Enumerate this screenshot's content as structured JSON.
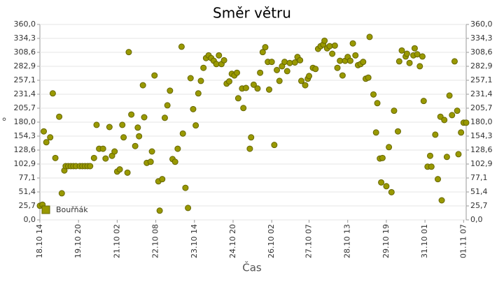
{
  "chart_data": {
    "type": "scatter",
    "title": "Směr větru",
    "x_label": "Čas",
    "y_label": "°",
    "ylim": [
      0,
      360
    ],
    "yticks": [
      {
        "value": 0,
        "label": "0,0"
      },
      {
        "value": 25.714,
        "label": "25,7"
      },
      {
        "value": 51.429,
        "label": "51,4"
      },
      {
        "value": 77.143,
        "label": "77,1"
      },
      {
        "value": 102.857,
        "label": "102,9"
      },
      {
        "value": 128.571,
        "label": "128,6"
      },
      {
        "value": 154.286,
        "label": "154,3"
      },
      {
        "value": 180,
        "label": "180,0"
      },
      {
        "value": 205.714,
        "label": "205,7"
      },
      {
        "value": 231.429,
        "label": "231,4"
      },
      {
        "value": 257.143,
        "label": "257,1"
      },
      {
        "value": 282.857,
        "label": "282,9"
      },
      {
        "value": 308.571,
        "label": "308,6"
      },
      {
        "value": 334.286,
        "label": "334,3"
      },
      {
        "value": 360,
        "label": "360,0"
      }
    ],
    "xlim": [
      "18.10 14",
      "01.11 09"
    ],
    "xticks": [
      "18.10 14",
      "19.10 20",
      "21.10 02",
      "22.10 08",
      "23.10 14",
      "24.10 20",
      "26.10 02",
      "27.10 07",
      "28.10 13",
      "29.10 19",
      "31.10 01",
      "01.11 07"
    ],
    "grid": true,
    "legend": "bottom-left",
    "series": [
      {
        "name": "Bouřňák",
        "color": "#999900",
        "x": [
          "18.10 14",
          "18.10 16",
          "18.10 17",
          "18.10 19",
          "18.10 22",
          "19.10 00",
          "19.10 02",
          "19.10 05",
          "19.10 07",
          "19.10 09",
          "19.10 10",
          "19.10 12",
          "19.10 14",
          "19.10 16",
          "19.10 18",
          "19.10 21",
          "19.10 23",
          "20.10 01",
          "20.10 03",
          "20.10 05",
          "20.10 08",
          "20.10 10",
          "20.10 12",
          "20.10 15",
          "20.10 17",
          "20.10 20",
          "20.10 22",
          "21.10 00",
          "21.10 02",
          "21.10 04",
          "21.10 06",
          "21.10 07",
          "21.10 10",
          "21.10 11",
          "21.10 13",
          "21.10 16",
          "21.10 18",
          "21.10 19",
          "21.10 22",
          "21.10 23",
          "22.10 01",
          "22.10 04",
          "22.10 05",
          "22.10 07",
          "22.10 10",
          "22.10 11",
          "22.10 13",
          "22.10 15",
          "22.10 17",
          "22.10 19",
          "22.10 21",
          "22.10 23",
          "23.10 01",
          "23.10 04",
          "23.10 05",
          "23.10 07",
          "23.10 09",
          "23.10 11",
          "23.10 13",
          "23.10 15",
          "23.10 17",
          "23.10 19",
          "23.10 21",
          "23.10 23",
          "24.10 01",
          "24.10 03",
          "24.10 05",
          "24.10 07",
          "24.10 09",
          "24.10 11",
          "24.10 13",
          "24.10 15",
          "24.10 17",
          "24.10 19",
          "24.10 21",
          "24.10 23",
          "25.10 00",
          "25.10 03",
          "25.10 04",
          "25.10 06",
          "25.10 09",
          "25.10 10",
          "25.10 12",
          "25.10 15",
          "25.10 17",
          "25.10 19",
          "25.10 21",
          "25.10 23",
          "26.10 00",
          "26.10 02",
          "26.10 04",
          "26.10 06",
          "26.10 08",
          "26.10 10",
          "26.10 12",
          "26.10 14",
          "26.10 16",
          "26.10 20",
          "26.10 22",
          "27.10 00",
          "27.10 01",
          "27.10 04",
          "27.10 06",
          "27.10 07",
          "27.10 10",
          "27.10 12",
          "27.10 14",
          "27.10 16",
          "27.10 18",
          "27.10 19",
          "27.10 21",
          "27.10 23",
          "28.10 01",
          "28.10 03",
          "28.10 05",
          "28.10 07",
          "28.10 09",
          "28.10 11",
          "28.10 13",
          "28.10 15",
          "28.10 17",
          "28.10 19",
          "28.10 21",
          "28.10 23",
          "29.10 01",
          "29.10 03",
          "29.10 05",
          "29.10 06",
          "29.10 09",
          "29.10 11",
          "29.10 12",
          "29.10 14",
          "29.10 15",
          "29.10 16",
          "29.10 19",
          "29.10 21",
          "29.10 23",
          "30.10 01",
          "30.10 04",
          "30.10 05",
          "30.10 07",
          "30.10 10",
          "30.10 11",
          "30.10 13",
          "30.10 16",
          "30.10 17",
          "30.10 19",
          "30.10 21",
          "30.10 23",
          "31.10 00",
          "31.10 03",
          "31.10 05",
          "31.10 06",
          "31.10 09",
          "31.10 11",
          "31.10 13",
          "31.10 14",
          "31.10 16",
          "31.10 18",
          "31.10 20",
          "31.10 22",
          "01.11 00",
          "01.11 02",
          "01.11 03",
          "01.11 05",
          "01.11 07",
          "01.11 09"
        ],
        "values": [
          26,
          28,
          163,
          143,
          152,
          233,
          114,
          190,
          49,
          91,
          99,
          99,
          99,
          99,
          99,
          99,
          99,
          99,
          99,
          99,
          114,
          175,
          131,
          131,
          113,
          171,
          118,
          126,
          89,
          93,
          175,
          152,
          87,
          309,
          194,
          136,
          170,
          154,
          248,
          189,
          105,
          107,
          126,
          266,
          71,
          17,
          75,
          188,
          211,
          238,
          112,
          107,
          131,
          319,
          159,
          59,
          22,
          261,
          204,
          174,
          233,
          256,
          280,
          298,
          303,
          298,
          293,
          287,
          303,
          287,
          294,
          251,
          255,
          269,
          266,
          271,
          224,
          242,
          206,
          243,
          131,
          152,
          249,
          242,
          271,
          309,
          318,
          291,
          240,
          291,
          138,
          276,
          256,
          283,
          291,
          274,
          289,
          290,
          300,
          294,
          256,
          248,
          260,
          265,
          280,
          278,
          315,
          320,
          323,
          330,
          316,
          320,
          306,
          321,
          280,
          293,
          266,
          293,
          300,
          293,
          325,
          303,
          285,
          287,
          291,
          260,
          262,
          337,
          231,
          161,
          215,
          113,
          69,
          114,
          62,
          134,
          51,
          201,
          163,
          292,
          312,
          301,
          306,
          289,
          303,
          316,
          305,
          283,
          301,
          219,
          98,
          118,
          98,
          157,
          75,
          190,
          36,
          184,
          116,
          229,
          193,
          292,
          201,
          121,
          161,
          179,
          179
        ]
      }
    ]
  }
}
